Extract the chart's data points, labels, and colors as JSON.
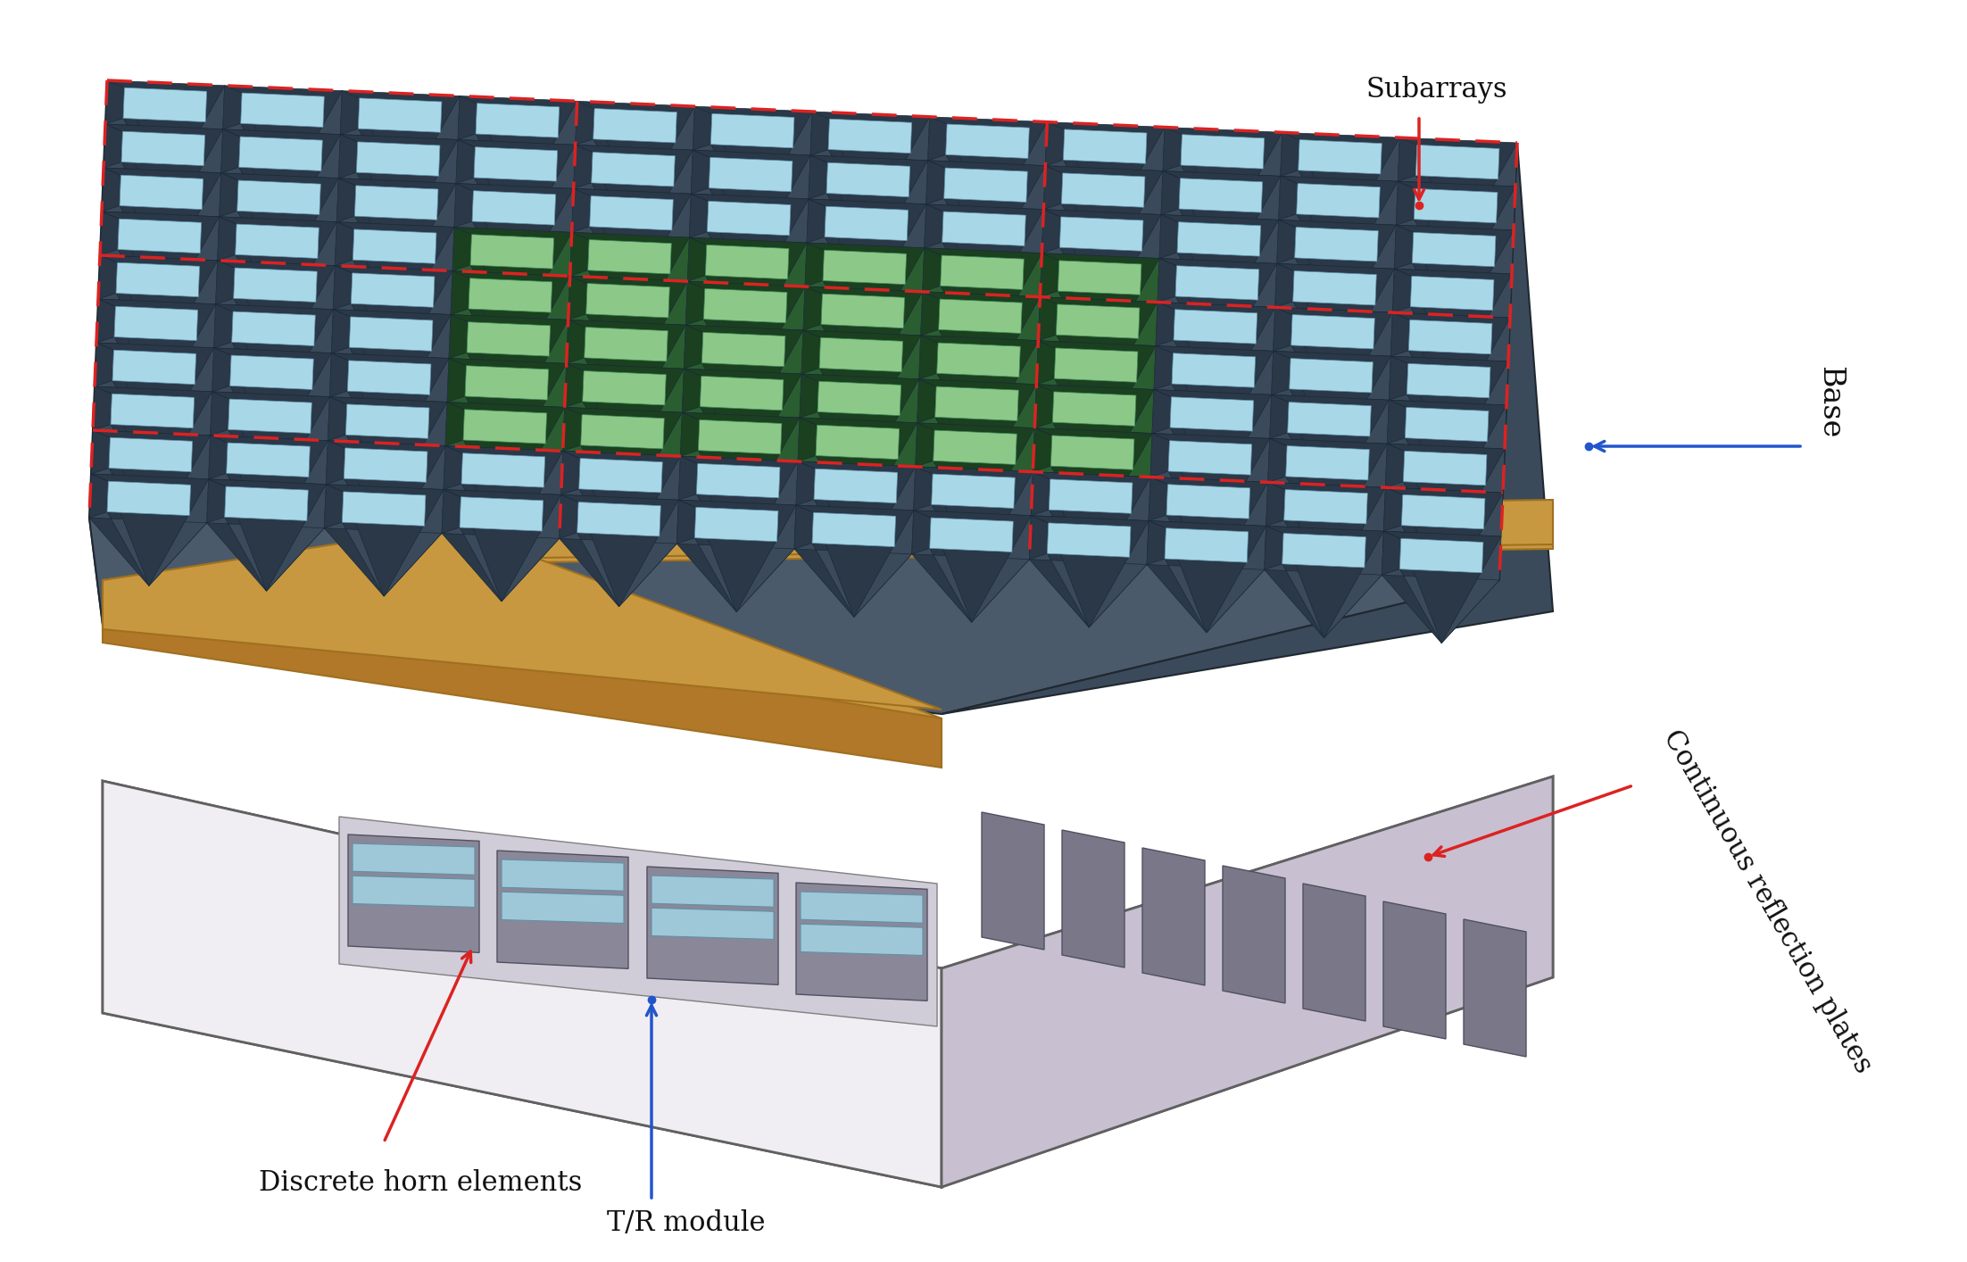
{
  "bg_color": "#ffffff",
  "title": "",
  "labels": {
    "subarrays": "Subarrays",
    "discrete_horn": "Discrete horn elements",
    "tr_module": "T/R module",
    "continuous_reflection": "Continuous reflection plates",
    "base": "Base"
  },
  "label_fontsize": 22,
  "colors": {
    "horn_light_blue": "#a8d8e8",
    "horn_dark_gray": "#4a5a6a",
    "horn_green_light": "#8bc48a",
    "horn_green_dark": "#2d6b3c",
    "red_dashed": "#dd2222",
    "blue_arrow": "#2255cc",
    "base_side_light": "#d0ccd8",
    "base_side_white": "#f0eeee",
    "base_bottom": "#e8e4ec",
    "pcb_gold": "#d4a44c",
    "pcb_gold2": "#c89830",
    "tr_module_gray": "#8a8a9a",
    "tr_module_light": "#b0b0c0",
    "inner_detail_blue": "#9ac8d8",
    "inner_detail_gray": "#787888",
    "reflection_plate_gray": "#909098"
  },
  "figure_size": [
    22.04,
    14.14
  ],
  "dpi": 100
}
